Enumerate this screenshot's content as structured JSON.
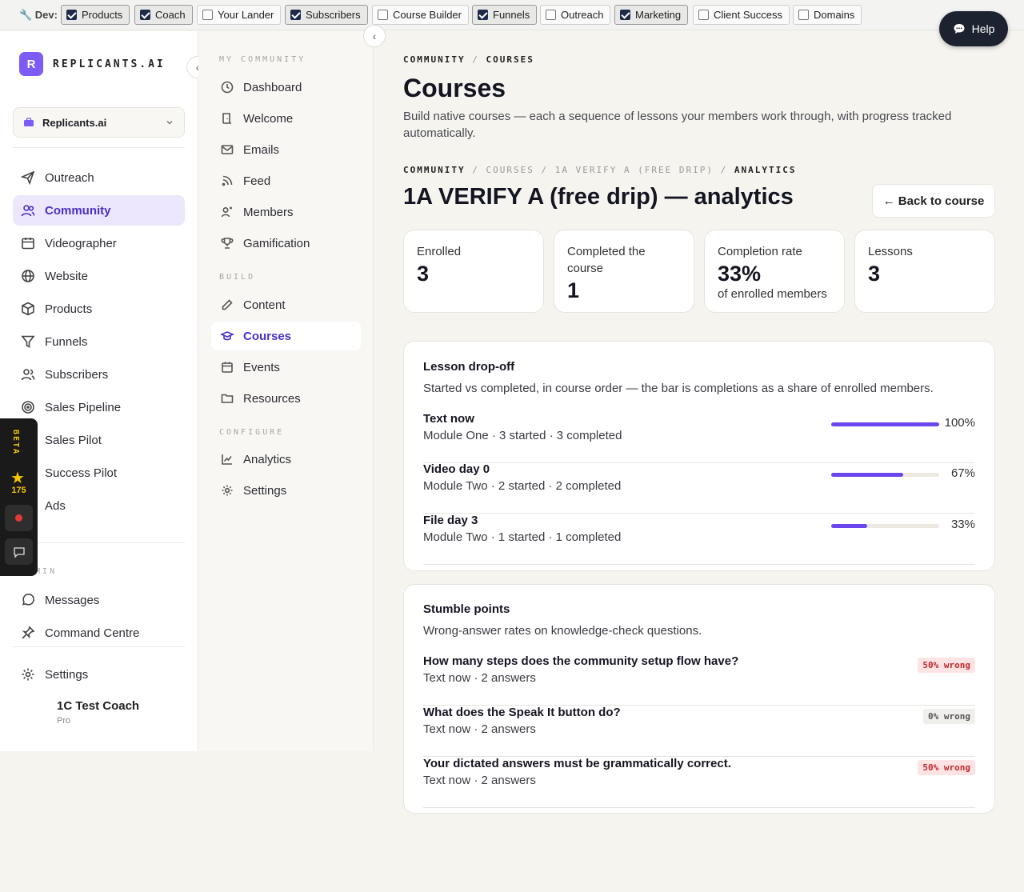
{
  "devbar": {
    "label": "🔧 Dev:",
    "flags": [
      {
        "label": "Products",
        "checked": true
      },
      {
        "label": "Coach",
        "checked": true
      },
      {
        "label": "Your Lander",
        "checked": false
      },
      {
        "label": "Subscribers",
        "checked": true
      },
      {
        "label": "Course Builder",
        "checked": false
      },
      {
        "label": "Funnels",
        "checked": true
      },
      {
        "label": "Outreach",
        "checked": false
      },
      {
        "label": "Marketing",
        "checked": true
      },
      {
        "label": "Client Success",
        "checked": false
      },
      {
        "label": "Domains",
        "checked": false
      }
    ]
  },
  "help": {
    "label": "Help"
  },
  "brand": {
    "initial": "R",
    "name": "REPLICANTS.AI"
  },
  "org_select": {
    "value": "Replicants.ai"
  },
  "primary_nav": [
    {
      "label": "Outreach",
      "icon": "send-icon"
    },
    {
      "label": "Community",
      "icon": "users-icon",
      "active": true
    },
    {
      "label": "Videographer",
      "icon": "calendar-icon"
    },
    {
      "label": "Website",
      "icon": "globe-icon"
    },
    {
      "label": "Products",
      "icon": "box-icon"
    },
    {
      "label": "Funnels",
      "icon": "filter-icon"
    },
    {
      "label": "Subscribers",
      "icon": "user-group-icon"
    },
    {
      "label": "Sales Pipeline",
      "icon": "target-icon"
    },
    {
      "label": "Sales Pilot",
      "icon": "sales-pilot-icon"
    },
    {
      "label": "Success Pilot",
      "icon": "success-pilot-icon"
    },
    {
      "label": "Ads",
      "icon": "ads-icon"
    }
  ],
  "admin_section": {
    "label": "ADMIN"
  },
  "admin_nav": [
    {
      "label": "Messages",
      "icon": "message-icon"
    },
    {
      "label": "Command Centre",
      "icon": "pin-icon"
    }
  ],
  "settings_nav": {
    "label": "Settings"
  },
  "user": {
    "name": "1C Test Coach",
    "plan": "Pro"
  },
  "beta": {
    "label": "BETA",
    "count": "175"
  },
  "secondary_nav": {
    "section_my_community": "MY COMMUNITY",
    "section_build": "BUILD",
    "section_configure": "CONFIGURE",
    "items": [
      {
        "label": "Dashboard"
      },
      {
        "label": "Welcome"
      },
      {
        "label": "Emails"
      },
      {
        "label": "Feed"
      },
      {
        "label": "Members"
      },
      {
        "label": "Gamification"
      },
      {
        "label": "Content"
      },
      {
        "label": "Courses",
        "active": true
      },
      {
        "label": "Events"
      },
      {
        "label": "Resources"
      },
      {
        "label": "Analytics"
      },
      {
        "label": "Settings"
      }
    ]
  },
  "page": {
    "crumb1": {
      "a": "COMMUNITY",
      "sep": "/",
      "b": "COURSES"
    },
    "title": "Courses",
    "description": "Build native courses — each a sequence of lessons your members work through, with progress tracked automatically.",
    "crumb2": {
      "a": "COMMUNITY",
      "b": "COURSES",
      "c": "1A VERIFY A (FREE DRIP)",
      "d": "ANALYTICS",
      "sep": "/"
    },
    "analytics_title": "1A VERIFY A (free drip) — analytics",
    "back_button": "← Back to course"
  },
  "stats": [
    {
      "label": "Enrolled",
      "value": "3",
      "sub": ""
    },
    {
      "label": "Completed the course",
      "value": "1",
      "sub": ""
    },
    {
      "label": "Completion rate",
      "value": "33%",
      "sub": "of enrolled members"
    },
    {
      "label": "Lessons",
      "value": "3",
      "sub": ""
    }
  ],
  "dropoff": {
    "title": "Lesson drop-off",
    "subtitle": "Started vs completed, in course order — the bar is completions as a share of enrolled members.",
    "rows": [
      {
        "lesson": "Text now",
        "meta": "Module One · 3 started · 3 completed",
        "pct_label": "100%",
        "pct": 1.0
      },
      {
        "lesson": "Video day 0",
        "meta": "Module Two · 2 started · 2 completed",
        "pct_label": "67%",
        "pct": 0.67
      },
      {
        "lesson": "File day 3",
        "meta": "Module Two · 1 started · 1 completed",
        "pct_label": "33%",
        "pct": 0.33
      }
    ]
  },
  "stumble": {
    "title": "Stumble points",
    "subtitle": "Wrong-answer rates on knowledge-check questions.",
    "rows": [
      {
        "question": "How many steps does the community setup flow have?",
        "meta": "Text now · 2 answers",
        "badge": "50% wrong",
        "severity": "high"
      },
      {
        "question": "What does the Speak It button do?",
        "meta": "Text now · 2 answers",
        "badge": "0% wrong",
        "severity": "none"
      },
      {
        "question": "Your dictated answers must be grammatically correct.",
        "meta": "Text now · 2 answers",
        "badge": "50% wrong",
        "severity": "high"
      }
    ]
  },
  "colors": {
    "accent": "#6a46ee",
    "accent_dark": "#4b2fc9",
    "danger": "#c0282d",
    "beta": "#f5c400"
  }
}
